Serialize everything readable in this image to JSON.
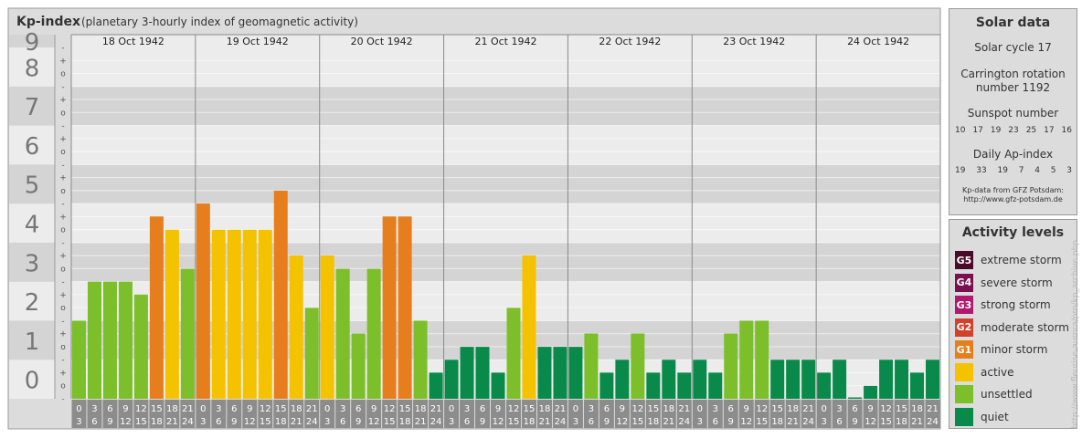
{
  "header": {
    "title": "Kp-index",
    "subtitle": "(planetary 3-hourly index of geomagnetic activity)"
  },
  "chart_data": {
    "type": "bar",
    "ylim": [
      0,
      9
    ],
    "y_ticks": [
      "0",
      "1",
      "2",
      "3",
      "4",
      "5",
      "6",
      "7",
      "8",
      "9"
    ],
    "sub_ticks": [
      "-",
      "o",
      "+"
    ],
    "days": [
      "18 Oct 1942",
      "19 Oct 1942",
      "20 Oct 1942",
      "21 Oct 1942",
      "22 Oct 1942",
      "23 Oct 1942",
      "24 Oct 1942"
    ],
    "hour_top": [
      "0",
      "3",
      "6",
      "9",
      "12",
      "15",
      "18",
      "21"
    ],
    "hour_bottom": [
      "3",
      "6",
      "9",
      "12",
      "15",
      "18",
      "21",
      "24"
    ],
    "values": [
      2.0,
      3.0,
      3.0,
      3.0,
      2.67,
      4.67,
      4.33,
      3.33,
      5.0,
      4.33,
      4.33,
      4.33,
      4.33,
      5.33,
      3.67,
      2.33,
      3.67,
      3.33,
      1.67,
      3.33,
      4.67,
      4.67,
      2.0,
      0.67,
      1.0,
      1.33,
      1.33,
      0.67,
      2.33,
      3.67,
      1.33,
      1.33,
      1.33,
      1.67,
      0.67,
      1.0,
      1.67,
      0.67,
      1.0,
      0.67,
      1.0,
      0.67,
      1.67,
      2.0,
      2.0,
      1.0,
      1.0,
      1.0,
      0.67,
      1.0,
      0.0,
      0.33,
      1.0,
      1.0,
      0.67,
      1.0
    ]
  },
  "solar": {
    "title": "Solar data",
    "cycle": "Solar cycle 17",
    "carrington_1": "Carrington rotation",
    "carrington_2": "number 1192",
    "sunspot_label": "Sunspot number",
    "sunspot_values": [
      "10",
      "17",
      "19",
      "23",
      "25",
      "17",
      "16"
    ],
    "ap_label": "Daily Ap-index",
    "ap_values": [
      "19",
      "33",
      "19",
      "7",
      "4",
      "5",
      "3"
    ],
    "source_1": "Kp-data from GFZ Potsdam:",
    "source_2": "http://www.gfz-potsdam.de"
  },
  "activity": {
    "title": "Activity levels",
    "levels": [
      {
        "code": "G5",
        "label": "extreme storm",
        "color": "#4a0a2a"
      },
      {
        "code": "G4",
        "label": "severe storm",
        "color": "#7a1050"
      },
      {
        "code": "G3",
        "label": "strong storm",
        "color": "#b01a6e"
      },
      {
        "code": "G2",
        "label": "moderate storm",
        "color": "#d0422a"
      },
      {
        "code": "G1",
        "label": "minor storm",
        "color": "#e67e1e"
      },
      {
        "code": "",
        "label": "active",
        "color": "#f5c200"
      },
      {
        "code": "",
        "label": "unsettled",
        "color": "#7cbf2a"
      },
      {
        "code": "",
        "label": "quiet",
        "color": "#0a8a4a"
      }
    ]
  },
  "watermark": "http://www.fleurise-aurora/pro/kp_archive.php"
}
